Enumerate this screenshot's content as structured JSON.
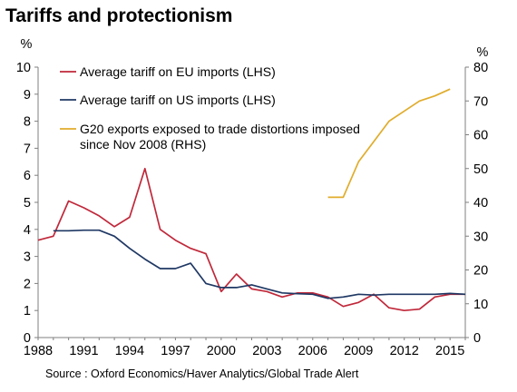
{
  "chart_data": {
    "type": "line",
    "title": "Tariffs and protectionism",
    "source": "Source : Oxford Economics/Haver Analytics/Global Trade Alert",
    "xlim": [
      1988,
      2016
    ],
    "x_ticks": [
      "1988",
      "1991",
      "1994",
      "1997",
      "2000",
      "2003",
      "2006",
      "2009",
      "2012",
      "2015"
    ],
    "y_left": {
      "label": "%",
      "ylim": [
        0,
        10
      ],
      "ticks": [
        "0",
        "1",
        "2",
        "3",
        "4",
        "5",
        "6",
        "7",
        "8",
        "9",
        "10"
      ]
    },
    "y_right": {
      "label": "%",
      "ylim": [
        0,
        80
      ],
      "ticks": [
        "0",
        "10",
        "20",
        "30",
        "40",
        "50",
        "60",
        "70",
        "80"
      ]
    },
    "grid": false,
    "legend_position": "top-left",
    "series": [
      {
        "name": "Average tariff on EU imports (LHS)",
        "axis": "left",
        "color": "#c0283a",
        "points": [
          [
            1988,
            3.6
          ],
          [
            1989,
            3.75
          ],
          [
            1990,
            5.05
          ],
          [
            1991,
            4.8
          ],
          [
            1992,
            4.5
          ],
          [
            1993,
            4.1
          ],
          [
            1994,
            4.45
          ],
          [
            1995,
            6.25
          ],
          [
            1996,
            4.0
          ],
          [
            1997,
            3.6
          ],
          [
            1998,
            3.3
          ],
          [
            1999,
            3.1
          ],
          [
            2000,
            1.7
          ],
          [
            2001,
            2.35
          ],
          [
            2002,
            1.8
          ],
          [
            2003,
            1.7
          ],
          [
            2004,
            1.5
          ],
          [
            2005,
            1.65
          ],
          [
            2006,
            1.65
          ],
          [
            2007,
            1.5
          ],
          [
            2008,
            1.15
          ],
          [
            2009,
            1.3
          ],
          [
            2010,
            1.6
          ],
          [
            2011,
            1.1
          ],
          [
            2012,
            1.0
          ],
          [
            2013,
            1.05
          ],
          [
            2014,
            1.5
          ],
          [
            2015,
            1.6
          ],
          [
            2016,
            1.6
          ]
        ]
      },
      {
        "name": "Average tariff on US imports (LHS)",
        "axis": "left",
        "color": "#1f3864",
        "points": [
          [
            1989,
            3.95
          ],
          [
            1990,
            3.95
          ],
          [
            1991,
            3.97
          ],
          [
            1992,
            3.97
          ],
          [
            1993,
            3.75
          ],
          [
            1994,
            3.3
          ],
          [
            1995,
            2.9
          ],
          [
            1996,
            2.55
          ],
          [
            1997,
            2.55
          ],
          [
            1998,
            2.75
          ],
          [
            1999,
            2.0
          ],
          [
            2000,
            1.85
          ],
          [
            2001,
            1.85
          ],
          [
            2002,
            1.95
          ],
          [
            2003,
            1.8
          ],
          [
            2004,
            1.65
          ],
          [
            2005,
            1.62
          ],
          [
            2006,
            1.6
          ],
          [
            2007,
            1.45
          ],
          [
            2008,
            1.5
          ],
          [
            2009,
            1.6
          ],
          [
            2010,
            1.57
          ],
          [
            2011,
            1.6
          ],
          [
            2012,
            1.6
          ],
          [
            2013,
            1.6
          ],
          [
            2014,
            1.6
          ],
          [
            2015,
            1.63
          ],
          [
            2016,
            1.6
          ]
        ]
      },
      {
        "name": "G20 exports exposed to trade distortions imposed since Nov 2008 (RHS)",
        "axis": "right",
        "color": "#e0ac2b",
        "points": [
          [
            2007,
            41.5
          ],
          [
            2008,
            41.5
          ],
          [
            2009,
            52
          ],
          [
            2010,
            58
          ],
          [
            2011,
            64
          ],
          [
            2012,
            67
          ],
          [
            2013,
            70
          ],
          [
            2014,
            71.5
          ],
          [
            2015,
            73.5
          ]
        ]
      }
    ]
  }
}
